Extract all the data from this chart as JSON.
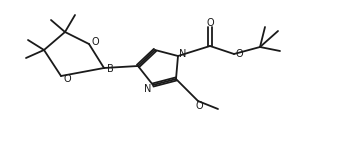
{
  "bg_color": "#ffffff",
  "line_color": "#1a1a1a",
  "line_width": 1.3,
  "font_size": 7.0,
  "figsize": [
    3.52,
    1.44
  ],
  "dpi": 100,
  "xlim": [
    0,
    352
  ],
  "ylim": [
    0,
    144
  ]
}
